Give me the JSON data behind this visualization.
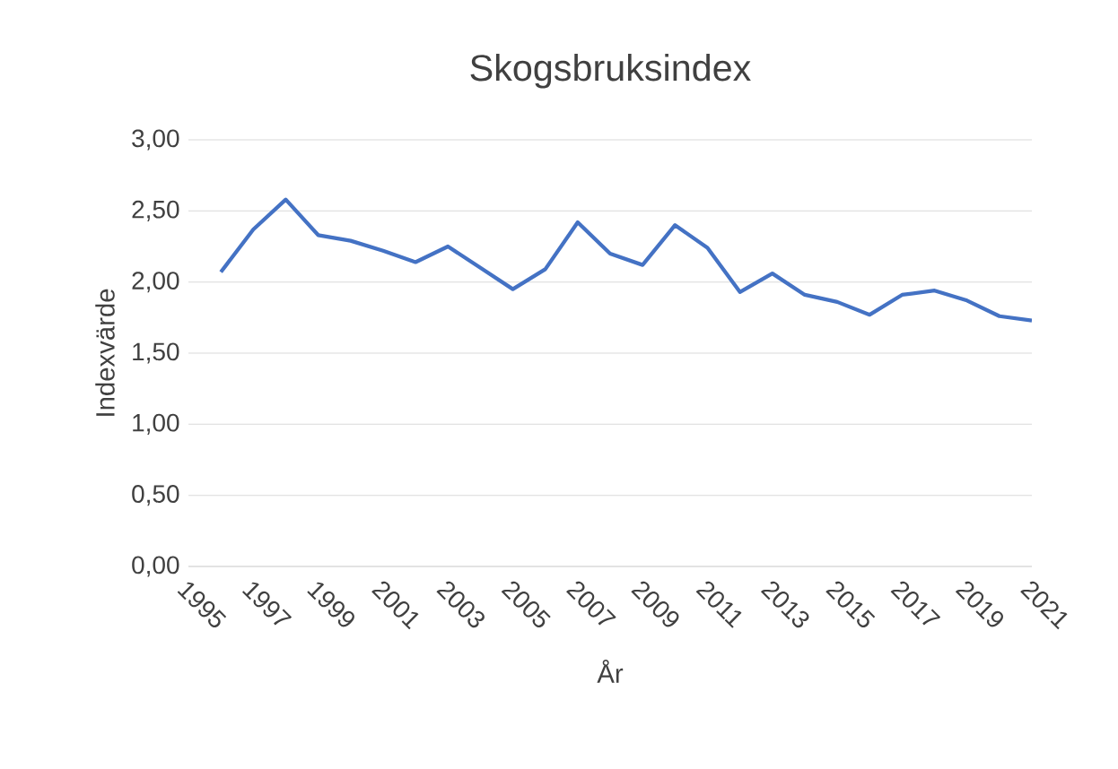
{
  "chart_data": {
    "type": "line",
    "title": "Skogsbruksindex",
    "xlabel": "År",
    "ylabel": "Indexvärde",
    "x": [
      1996,
      1997,
      1998,
      1999,
      2000,
      2001,
      2002,
      2003,
      2004,
      2005,
      2006,
      2007,
      2008,
      2009,
      2010,
      2011,
      2012,
      2013,
      2014,
      2015,
      2016,
      2017,
      2018,
      2019,
      2020,
      2021
    ],
    "values": [
      2.07,
      2.37,
      2.58,
      2.33,
      2.29,
      2.22,
      2.14,
      2.25,
      2.1,
      1.95,
      2.09,
      2.42,
      2.2,
      2.12,
      2.4,
      2.24,
      1.93,
      2.06,
      1.91,
      1.86,
      1.77,
      1.91,
      1.94,
      1.87,
      1.76,
      1.73
    ],
    "color": "#4472c4",
    "xlim": [
      1995,
      2021
    ],
    "xticks": [
      1995,
      1997,
      1999,
      2001,
      2003,
      2005,
      2007,
      2009,
      2011,
      2013,
      2015,
      2017,
      2019,
      2021
    ],
    "ylim": [
      0,
      3
    ],
    "yticks": [
      {
        "value": 0,
        "label": "0,00"
      },
      {
        "value": 0.5,
        "label": "0,50"
      },
      {
        "value": 1,
        "label": "1,00"
      },
      {
        "value": 1.5,
        "label": "1,50"
      },
      {
        "value": 2,
        "label": "2,00"
      },
      {
        "value": 2.5,
        "label": "2,50"
      },
      {
        "value": 3,
        "label": "3,00"
      }
    ],
    "grid": "y",
    "marker": "none",
    "line_style": "solid"
  }
}
